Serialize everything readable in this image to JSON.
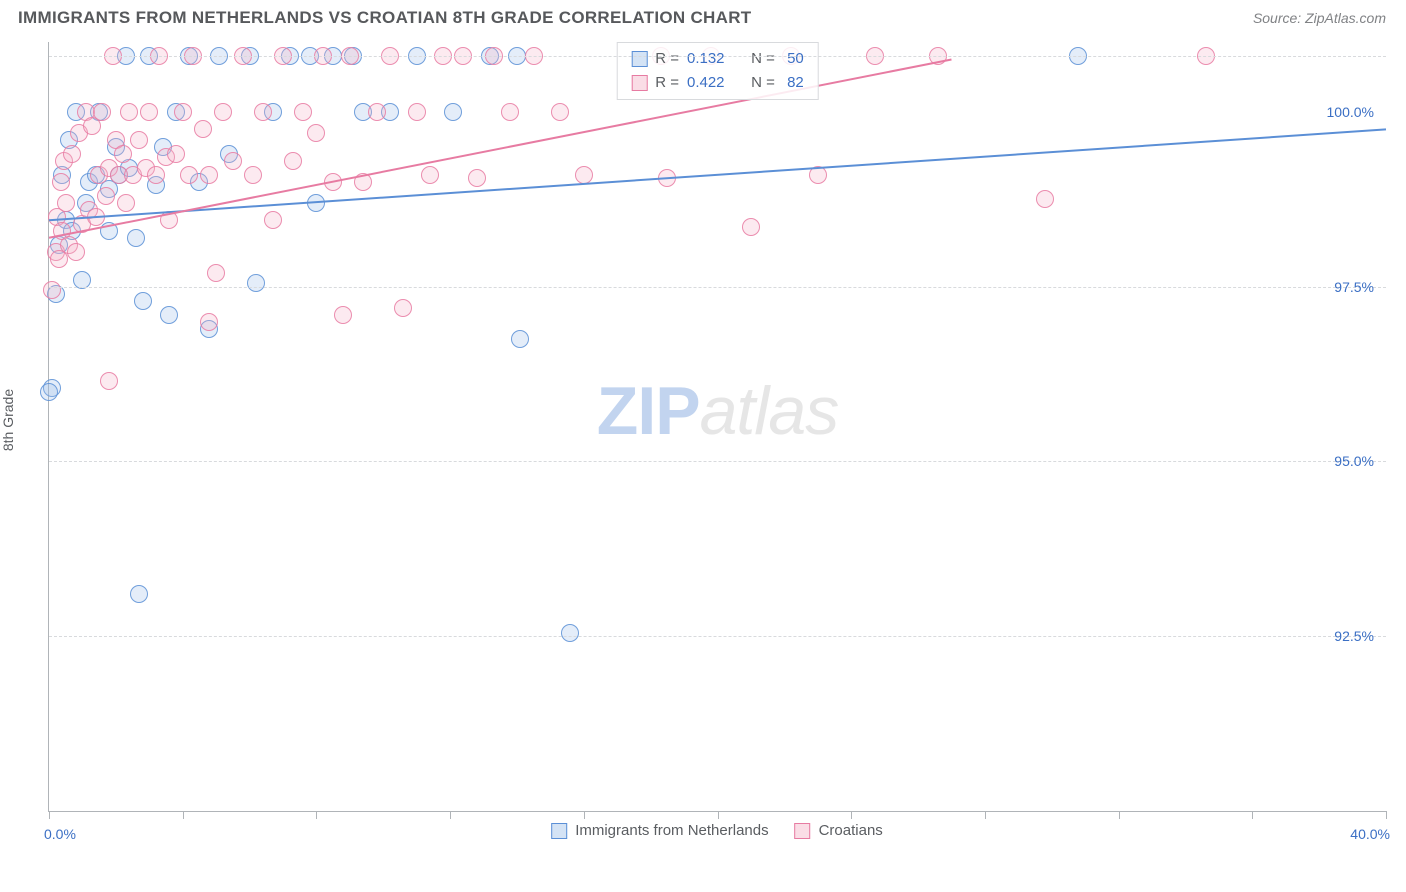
{
  "title": "IMMIGRANTS FROM NETHERLANDS VS CROATIAN 8TH GRADE CORRELATION CHART",
  "source": "Source: ZipAtlas.com",
  "y_axis_label": "8th Grade",
  "watermark": {
    "zip": "ZIP",
    "atlas": "atlas"
  },
  "chart": {
    "type": "scatter",
    "xlim": [
      0,
      40
    ],
    "ylim": [
      90,
      101
    ],
    "x_ticks": [
      0,
      4,
      8,
      12,
      16,
      20,
      24,
      28,
      32,
      36,
      40
    ],
    "x_tick_labels_show": false,
    "x_left_label": "0.0%",
    "x_right_label": "40.0%",
    "y_gridlines": [
      92.5,
      95.0,
      97.5,
      100.8
    ],
    "y_tick_labels": [
      {
        "v": 92.5,
        "label": "92.5%"
      },
      {
        "v": 95.0,
        "label": "95.0%"
      },
      {
        "v": 97.5,
        "label": "97.5%"
      },
      {
        "v": 100.0,
        "label": "100.0%"
      }
    ],
    "background_color": "#ffffff",
    "grid_color": "#d8dadd",
    "axis_color": "#b0b4b8",
    "tick_label_color": "#3b6fc4",
    "marker_radius": 9,
    "marker_fill_opacity": 0.28,
    "marker_stroke_opacity": 0.85,
    "marker_stroke_width": 1.2,
    "trend_line_width": 2,
    "series": [
      {
        "name": "Immigrants from Netherlands",
        "color": "#5b8fd6",
        "fill": "#9fc0e8",
        "R": 0.132,
        "N": 50,
        "trend": {
          "x1": 0,
          "y1": 98.45,
          "x2": 40,
          "y2": 99.75
        },
        "points": [
          [
            0.2,
            97.4
          ],
          [
            0.3,
            98.1
          ],
          [
            0.4,
            99.1
          ],
          [
            0.5,
            98.45
          ],
          [
            0.6,
            99.6
          ],
          [
            0.7,
            98.3
          ],
          [
            0.8,
            100.0
          ],
          [
            1.0,
            97.6
          ],
          [
            1.1,
            98.7
          ],
          [
            1.2,
            99.0
          ],
          [
            1.4,
            99.1
          ],
          [
            1.5,
            100.0
          ],
          [
            1.8,
            98.3
          ],
          [
            1.8,
            98.9
          ],
          [
            2.0,
            99.5
          ],
          [
            2.1,
            99.1
          ],
          [
            2.3,
            100.8
          ],
          [
            2.4,
            99.2
          ],
          [
            2.6,
            98.2
          ],
          [
            2.8,
            97.3
          ],
          [
            3.0,
            100.8
          ],
          [
            3.2,
            98.95
          ],
          [
            3.4,
            99.5
          ],
          [
            3.6,
            97.1
          ],
          [
            3.8,
            100.0
          ],
          [
            4.2,
            100.8
          ],
          [
            4.5,
            99.0
          ],
          [
            4.8,
            96.9
          ],
          [
            5.1,
            100.8
          ],
          [
            5.4,
            99.4
          ],
          [
            6.0,
            100.8
          ],
          [
            6.2,
            97.55
          ],
          [
            6.7,
            100.0
          ],
          [
            7.2,
            100.8
          ],
          [
            7.8,
            100.8
          ],
          [
            8.0,
            98.7
          ],
          [
            8.5,
            100.8
          ],
          [
            9.1,
            100.8
          ],
          [
            9.4,
            100.0
          ],
          [
            10.2,
            100.0
          ],
          [
            11.0,
            100.8
          ],
          [
            12.1,
            100.0
          ],
          [
            13.2,
            100.8
          ],
          [
            14.1,
            96.75
          ],
          [
            14.0,
            100.8
          ],
          [
            15.6,
            92.55
          ],
          [
            30.8,
            100.8
          ],
          [
            0.1,
            96.05
          ],
          [
            2.7,
            93.1
          ],
          [
            0.0,
            96.0
          ]
        ]
      },
      {
        "name": "Croatians",
        "color": "#e77ba2",
        "fill": "#f3b3c8",
        "R": 0.422,
        "N": 82,
        "trend": {
          "x1": 0,
          "y1": 98.2,
          "x2": 27,
          "y2": 100.75
        },
        "points": [
          [
            0.1,
            97.45
          ],
          [
            0.2,
            98.0
          ],
          [
            0.25,
            98.5
          ],
          [
            0.3,
            97.9
          ],
          [
            0.35,
            99.0
          ],
          [
            0.4,
            98.3
          ],
          [
            0.45,
            99.3
          ],
          [
            0.5,
            98.7
          ],
          [
            0.6,
            98.1
          ],
          [
            0.7,
            99.4
          ],
          [
            0.8,
            98.0
          ],
          [
            0.9,
            99.7
          ],
          [
            1.0,
            98.4
          ],
          [
            1.1,
            100.0
          ],
          [
            1.2,
            98.6
          ],
          [
            1.3,
            99.8
          ],
          [
            1.4,
            98.5
          ],
          [
            1.5,
            99.1
          ],
          [
            1.6,
            100.0
          ],
          [
            1.7,
            98.8
          ],
          [
            1.8,
            99.2
          ],
          [
            1.9,
            100.8
          ],
          [
            2.0,
            99.6
          ],
          [
            2.1,
            99.1
          ],
          [
            2.2,
            99.4
          ],
          [
            2.3,
            98.7
          ],
          [
            2.4,
            100.0
          ],
          [
            2.5,
            99.1
          ],
          [
            2.7,
            99.6
          ],
          [
            2.9,
            99.2
          ],
          [
            3.0,
            100.0
          ],
          [
            3.2,
            99.1
          ],
          [
            3.3,
            100.8
          ],
          [
            3.5,
            99.35
          ],
          [
            3.6,
            98.45
          ],
          [
            3.8,
            99.4
          ],
          [
            4.0,
            100.0
          ],
          [
            4.2,
            99.1
          ],
          [
            4.3,
            100.8
          ],
          [
            4.6,
            99.75
          ],
          [
            4.8,
            99.1
          ],
          [
            5.0,
            97.7
          ],
          [
            5.2,
            100.0
          ],
          [
            5.5,
            99.3
          ],
          [
            5.8,
            100.8
          ],
          [
            6.1,
            99.1
          ],
          [
            6.4,
            100.0
          ],
          [
            6.7,
            98.45
          ],
          [
            7.0,
            100.8
          ],
          [
            7.3,
            99.3
          ],
          [
            7.6,
            100.0
          ],
          [
            8.0,
            99.7
          ],
          [
            8.2,
            100.8
          ],
          [
            8.5,
            99.0
          ],
          [
            8.8,
            97.1
          ],
          [
            9.0,
            100.8
          ],
          [
            9.4,
            99.0
          ],
          [
            9.8,
            100.0
          ],
          [
            10.2,
            100.8
          ],
          [
            10.6,
            97.2
          ],
          [
            11.0,
            100.0
          ],
          [
            11.4,
            99.1
          ],
          [
            11.8,
            100.8
          ],
          [
            12.4,
            100.8
          ],
          [
            12.8,
            99.05
          ],
          [
            13.3,
            100.8
          ],
          [
            13.8,
            100.0
          ],
          [
            14.5,
            100.8
          ],
          [
            15.3,
            100.0
          ],
          [
            16.0,
            99.1
          ],
          [
            18.3,
            100.8
          ],
          [
            18.5,
            99.05
          ],
          [
            19.8,
            100.8
          ],
          [
            21.0,
            98.35
          ],
          [
            22.2,
            100.8
          ],
          [
            23.0,
            99.1
          ],
          [
            24.7,
            100.8
          ],
          [
            26.6,
            100.8
          ],
          [
            29.8,
            98.75
          ],
          [
            34.6,
            100.8
          ],
          [
            1.8,
            96.15
          ],
          [
            4.8,
            97.0
          ]
        ]
      }
    ]
  },
  "stats_legend": {
    "rows": [
      {
        "series": 0,
        "R_label": "R =",
        "N_label": "N ="
      },
      {
        "series": 1,
        "R_label": "R =",
        "N_label": "N ="
      }
    ]
  },
  "bottom_legend": {
    "items": [
      {
        "series": 0
      },
      {
        "series": 1
      }
    ]
  }
}
